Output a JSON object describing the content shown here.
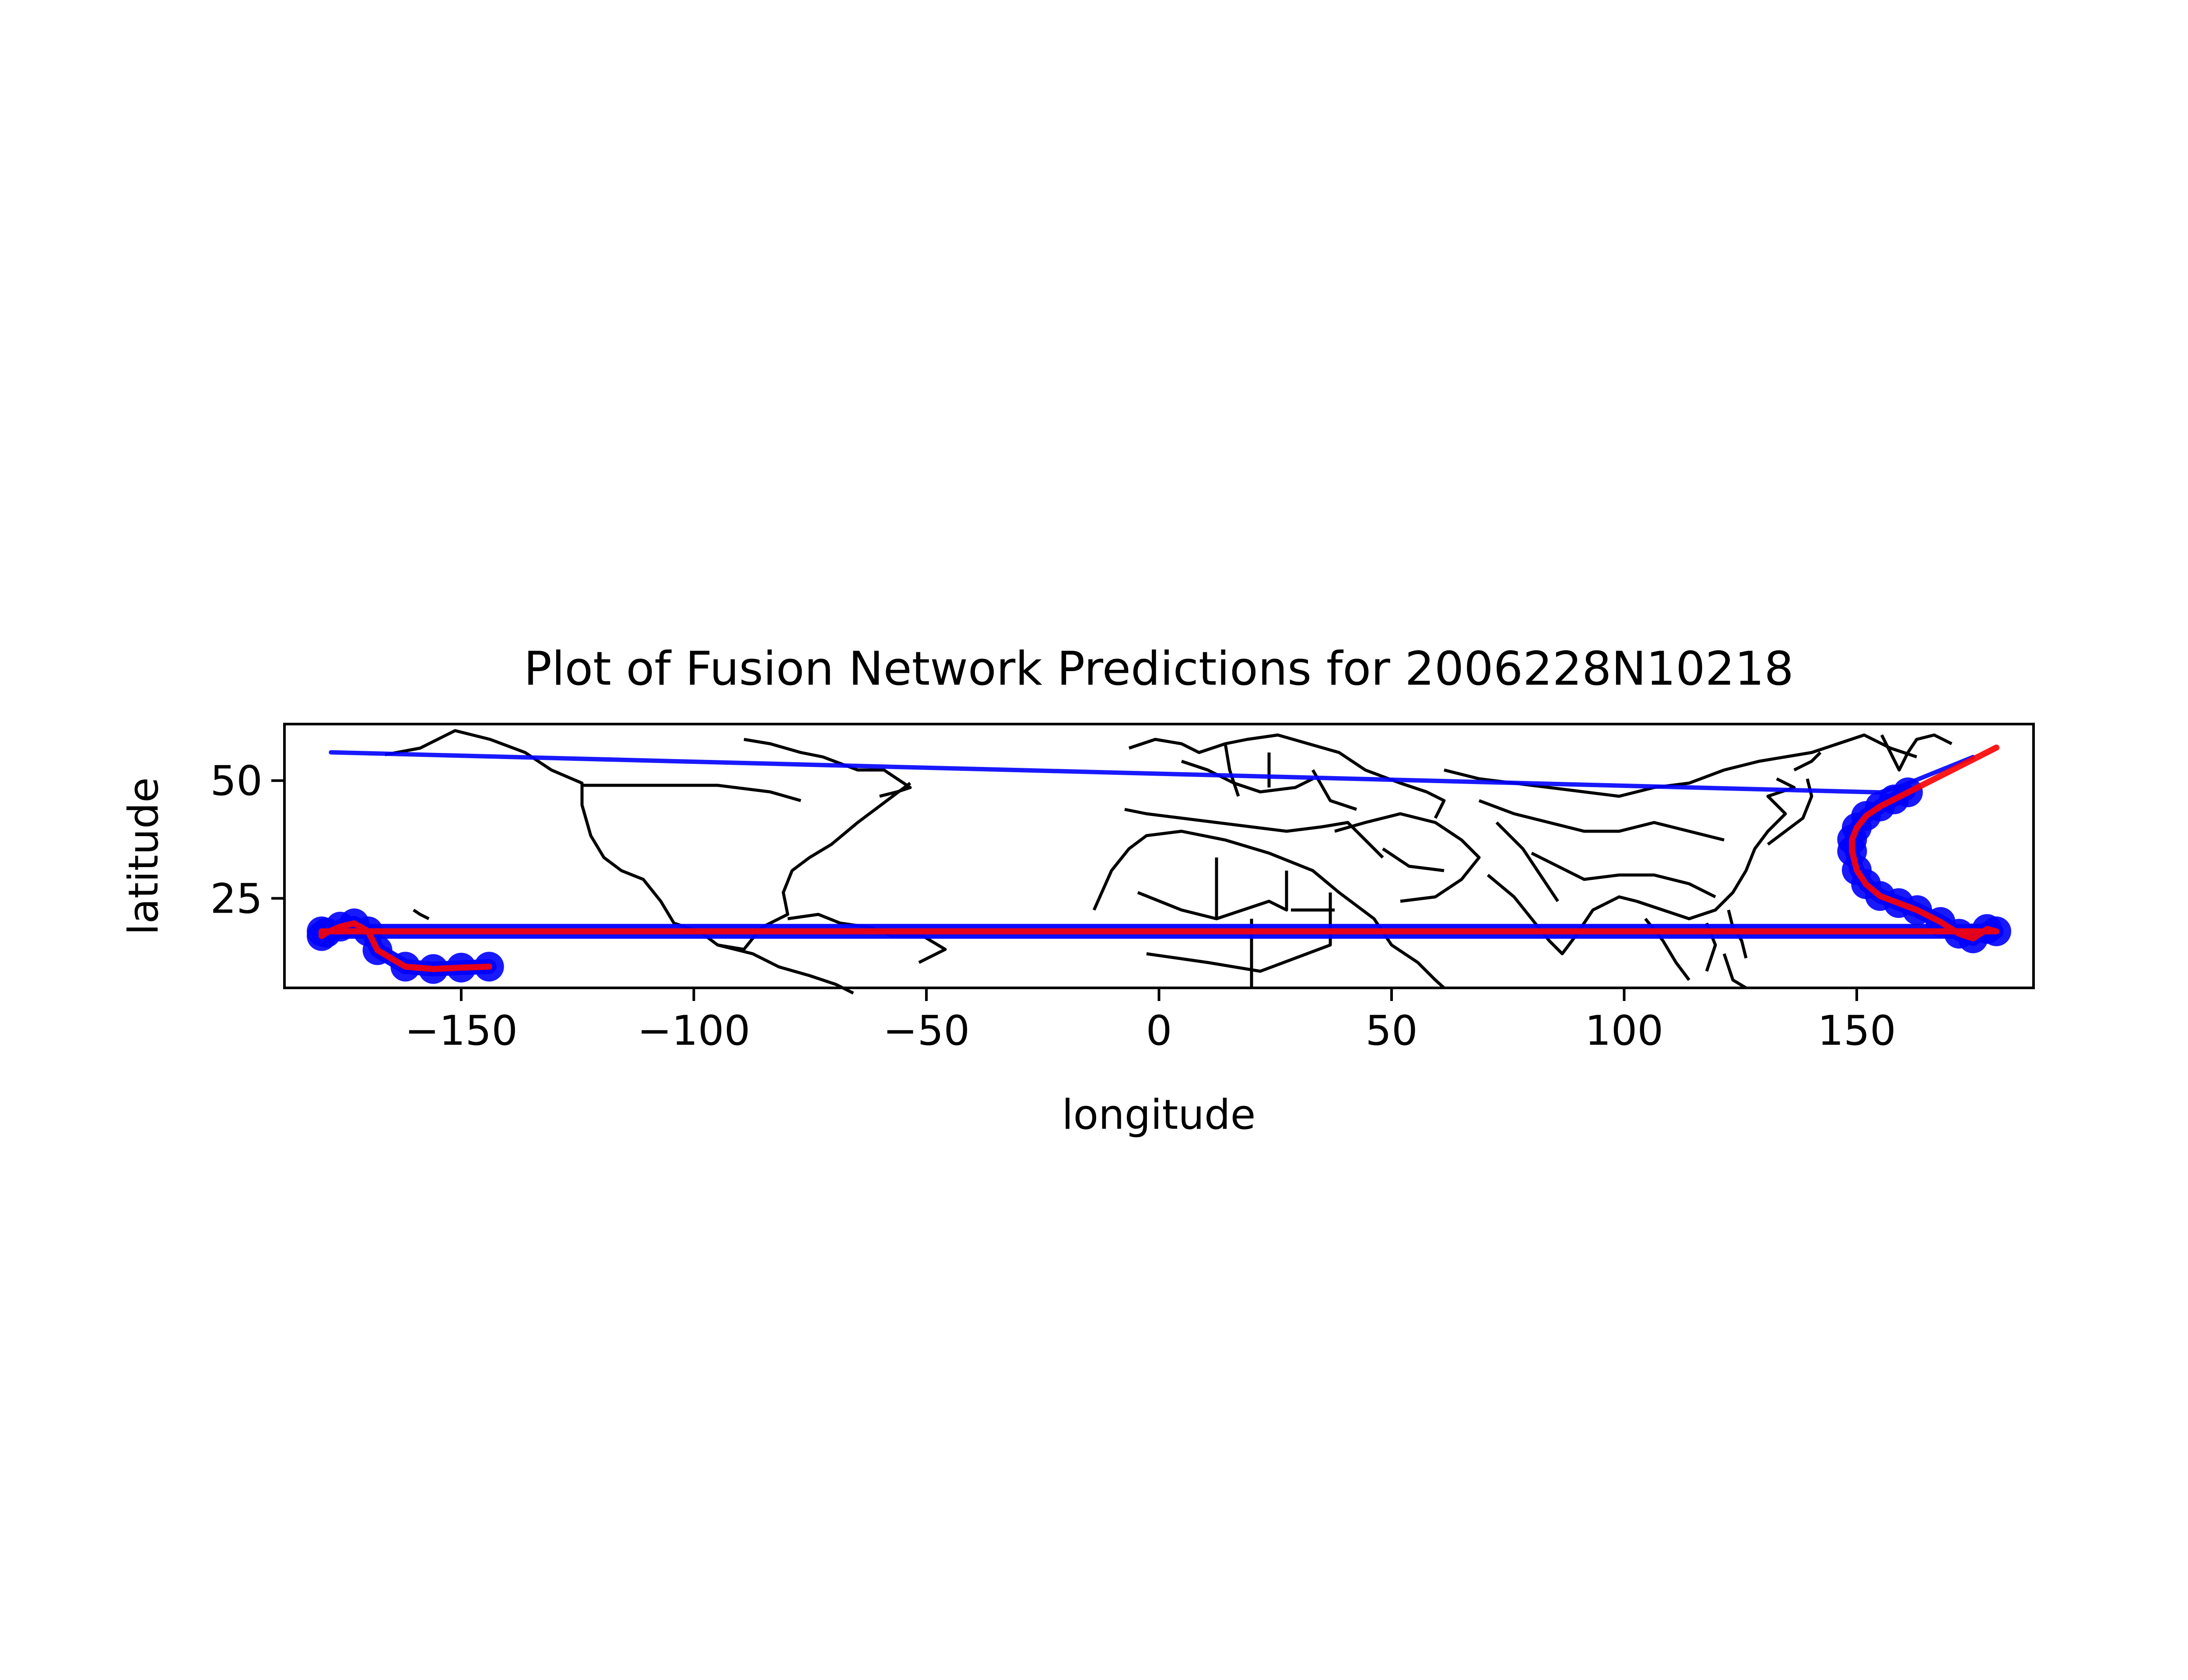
{
  "chart_data": {
    "type": "line",
    "title": "Plot of Fusion Network Predictions for 2006228N10218",
    "xlabel": "longitude",
    "ylabel": "latitude",
    "xlim": [
      -188,
      188
    ],
    "ylim": [
      6,
      62
    ],
    "xticks": [
      -150,
      -100,
      -50,
      0,
      50,
      100,
      150
    ],
    "yticks": [
      25,
      50
    ],
    "xtick_labels": [
      "−150",
      "−100",
      "−50",
      "0",
      "50",
      "100",
      "150"
    ],
    "ytick_labels": [
      "25",
      "50"
    ],
    "grid": false,
    "basemap": "world country borders and coastlines",
    "series": [
      {
        "color": "#0000ff",
        "style": "thick markers",
        "x": [
          -144,
          -150,
          -156,
          -162,
          -168,
          -170,
          -173,
          -176,
          -179,
          -180,
          -180,
          180,
          178,
          175,
          172,
          168,
          163,
          159,
          155,
          152,
          150,
          149,
          149,
          150,
          152,
          155,
          158,
          161
        ],
        "y": [
          10.5,
          10.3,
          10.0,
          10.5,
          14.0,
          18.0,
          19.7,
          19.0,
          17.7,
          17.0,
          18.0,
          18.0,
          18.5,
          16.5,
          17.5,
          20.0,
          22.5,
          24.0,
          25.5,
          28.0,
          31.0,
          35.0,
          37.5,
          40.0,
          42.5,
          44.5,
          46.0,
          47.5
        ]
      },
      {
        "color": "#ff0000",
        "style": "line",
        "x": [
          -144,
          -150,
          -156,
          -162,
          -168,
          -170,
          -173,
          -176,
          -179,
          -180,
          -180,
          180,
          178,
          175,
          172,
          168,
          163,
          159,
          155,
          152,
          150,
          149,
          149,
          150,
          152,
          155,
          158,
          161,
          165,
          170,
          174,
          177,
          180
        ],
        "y": [
          10.5,
          10.3,
          10.0,
          10.5,
          14.0,
          18.0,
          19.7,
          19.0,
          17.7,
          17.0,
          18.0,
          18.0,
          18.5,
          16.5,
          17.5,
          20.0,
          22.5,
          24.0,
          25.5,
          28.0,
          31.0,
          35.0,
          37.5,
          40.0,
          42.5,
          44.5,
          46.0,
          47.5,
          49.5,
          52.0,
          54.0,
          55.5,
          57.0
        ]
      },
      {
        "color": "#0000ff",
        "style": "line",
        "x": [
          -178,
          155,
          160,
          165,
          170,
          175
        ],
        "y": [
          56,
          47.5,
          49.0,
          51.0,
          53.0,
          55.0
        ]
      }
    ]
  }
}
